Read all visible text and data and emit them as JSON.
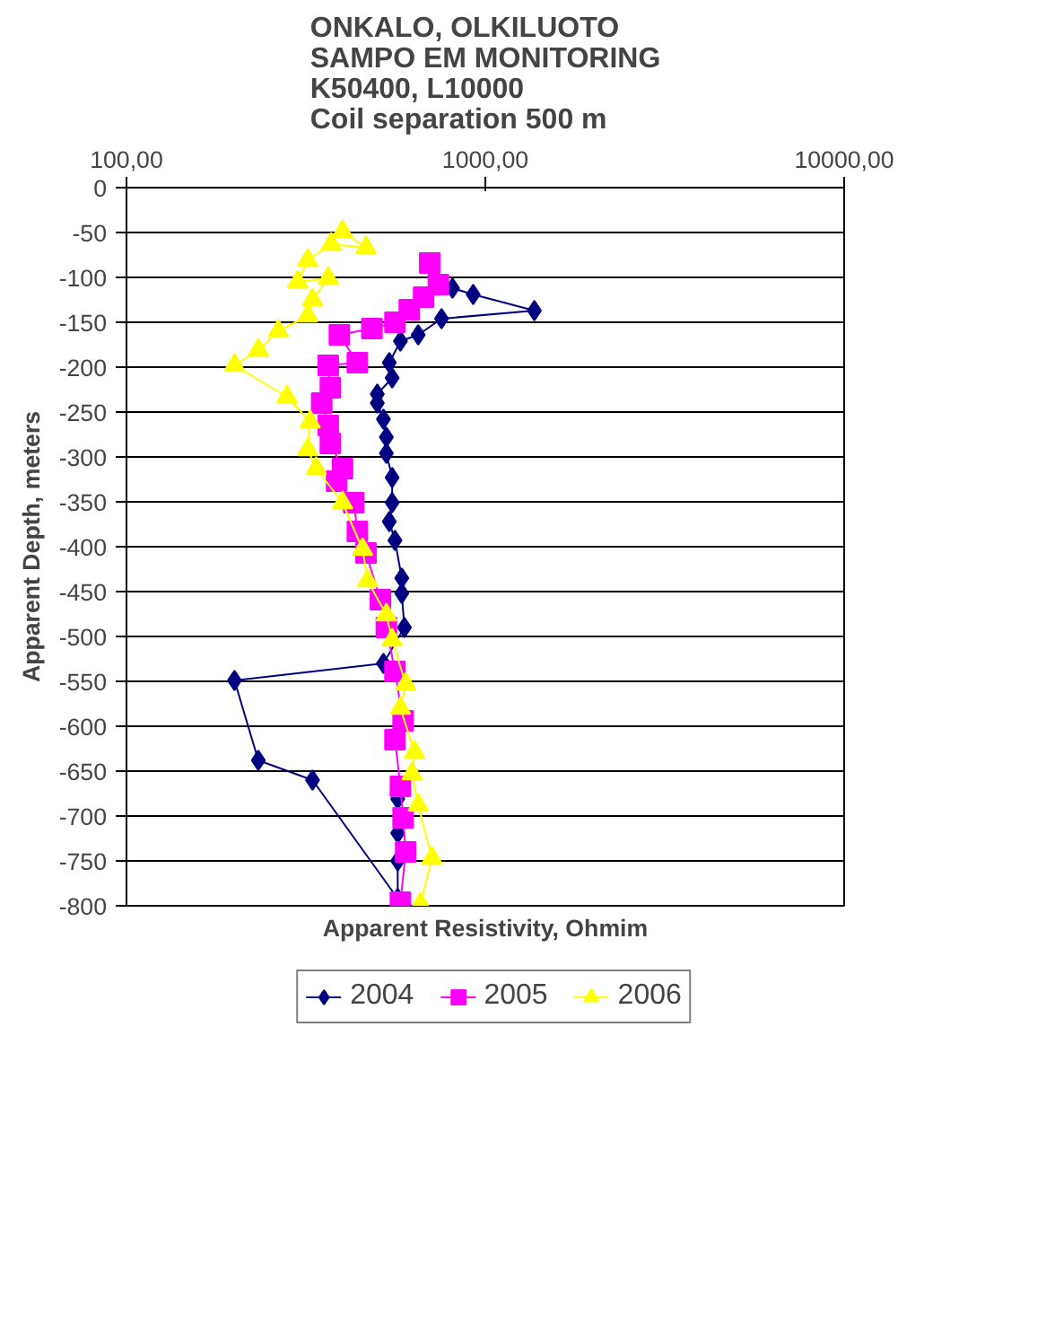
{
  "chart_data": {
    "type": "line",
    "title": "ONKALO, OLKILUOTO\nSAMPO EM MONITORING\nK50400, L10000\nCoil separation 500 m",
    "xlabel": "Apparent Resistivity, Ohmim",
    "ylabel": "Apparent Depth, meters",
    "log": "x",
    "xlim": [
      100,
      10000
    ],
    "xticks": [
      {
        "value": 100,
        "label": "100,00"
      },
      {
        "value": 1000,
        "label": "1000,00"
      },
      {
        "value": 10000,
        "label": "10000,00"
      }
    ],
    "ylim": [
      -800,
      0
    ],
    "yticks": [
      0,
      -50,
      -100,
      -150,
      -200,
      -250,
      -300,
      -350,
      -400,
      -450,
      -500,
      -550,
      -600,
      -650,
      -700,
      -750,
      -800
    ],
    "grid": "y",
    "legend": "bottom",
    "line_style": "solid",
    "series": [
      {
        "name": "2004",
        "color": "#000080",
        "marker": "diamond",
        "x": [
          810,
          925,
          1370,
          755,
          650,
          580,
          540,
          550,
          500,
          500,
          520,
          530,
          530,
          550,
          550,
          540,
          560,
          585,
          585,
          595,
          520,
          200,
          233,
          330,
          570,
          570,
          570,
          570
        ],
        "values": [
          -112,
          -119,
          -137,
          -146,
          -164,
          -171,
          -195,
          -212,
          -230,
          -240,
          -258,
          -278,
          -296,
          -323,
          -351,
          -372,
          -393,
          -435,
          -452,
          -490,
          -530,
          -549,
          -638,
          -660,
          -792,
          -750,
          -719,
          -681
        ]
      },
      {
        "name": "2005",
        "color": "#ff00ff",
        "marker": "square",
        "x": [
          700,
          740,
          673,
          614,
          560,
          483,
          392,
          440,
          365,
          370,
          350,
          365,
          370,
          400,
          385,
          430,
          440,
          465,
          510,
          530,
          560,
          590,
          560,
          580,
          590,
          600,
          580
        ],
        "values": [
          -84,
          -108,
          -122,
          -136,
          -150,
          -157,
          -164,
          -195,
          -198,
          -223,
          -240,
          -265,
          -285,
          -313,
          -327,
          -351,
          -383,
          -407,
          -459,
          -490,
          -539,
          -594,
          -615,
          -667,
          -702,
          -740,
          -796
        ]
      },
      {
        "name": "2006",
        "color": "#ffff00",
        "marker": "triangle",
        "x": [
          400,
          465,
          372,
          320,
          300,
          365,
          330,
          320,
          265,
          233,
          200,
          280,
          325,
          320,
          338,
          400,
          455,
          470,
          530,
          550,
          600,
          580,
          635,
          625,
          650,
          710,
          660
        ],
        "values": [
          -49,
          -67,
          -63,
          -81,
          -105,
          -101,
          -125,
          -143,
          -160,
          -181,
          -198,
          -233,
          -261,
          -292,
          -313,
          -351,
          -403,
          -438,
          -476,
          -504,
          -553,
          -580,
          -629,
          -653,
          -688,
          -747,
          -798
        ]
      }
    ]
  }
}
